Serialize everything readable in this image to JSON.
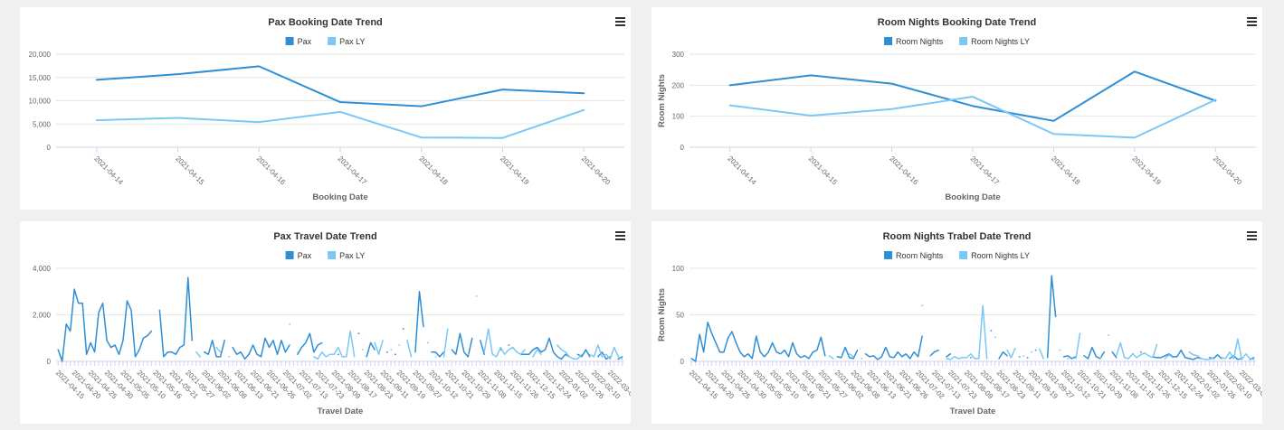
{
  "chart_data": [
    {
      "type": "line",
      "title": "Pax Booking Date Trend",
      "xlabel": "Booking Date",
      "categories": [
        "2021-04-14",
        "2021-04-15",
        "2021-04-16",
        "2021-04-17",
        "2021-04-18",
        "2021-04-19",
        "2021-04-20"
      ],
      "series": [
        {
          "name": "Pax",
          "color": "#2f8fd6",
          "values": [
            14500,
            15700,
            17400,
            9700,
            8800,
            12400,
            11600
          ]
        },
        {
          "name": "Pax LY",
          "color": "#7cc8f5",
          "values": [
            5800,
            6300,
            5400,
            7600,
            2100,
            2000,
            8000
          ]
        }
      ],
      "ylim": [
        0,
        20000
      ],
      "yticks": [
        0,
        {
          "value": 5000,
          "label": "5,000"
        },
        {
          "value": 10000,
          "label": "10,000"
        },
        {
          "value": 15000,
          "label": "15,000"
        },
        {
          "value": 20000,
          "label": "20,000"
        }
      ],
      "grid": true
    },
    {
      "type": "line",
      "title": "Room Nights Booking Date Trend",
      "xlabel": "Booking Date",
      "ylabel": "Room Nights",
      "categories": [
        "2021-04-14",
        "2021-04-15",
        "2021-04-16",
        "2021-04-17",
        "2021-04-18",
        "2021-04-19",
        "2021-04-20"
      ],
      "series": [
        {
          "name": "Room Nights",
          "color": "#2f8fd6",
          "values": [
            200,
            232,
            205,
            133,
            85,
            244,
            150
          ]
        },
        {
          "name": "Room Nights LY",
          "color": "#7cc8f5",
          "values": [
            135,
            102,
            123,
            163,
            43,
            31,
            153
          ]
        }
      ],
      "ylim": [
        0,
        300
      ],
      "yticks": [
        0,
        100,
        200,
        300
      ],
      "grid": true
    },
    {
      "type": "line",
      "title": "Pax Travel Date Trend",
      "xlabel": "Travel Date",
      "categories": [
        "2021-04-15",
        null,
        null,
        null,
        "2021-04-20",
        null,
        null,
        null,
        "2021-04-25",
        null,
        null,
        null,
        "2021-04-30",
        null,
        null,
        null,
        "2021-05-05",
        null,
        null,
        null,
        "2021-05-10",
        null,
        null,
        null,
        "2021-05-16",
        null,
        null,
        null,
        "2021-05-21",
        null,
        null,
        null,
        "2021-05-27",
        null,
        null,
        null,
        "2021-06-02",
        null,
        null,
        null,
        "2021-06-08",
        null,
        null,
        null,
        "2021-06-13",
        null,
        null,
        null,
        "2021-06-21",
        null,
        null,
        null,
        "2021-06-26",
        null,
        null,
        null,
        "2021-07-02",
        null,
        null,
        null,
        "2021-07-13",
        null,
        null,
        null,
        "2021-07-23",
        null,
        null,
        null,
        "2021-08-09",
        null,
        null,
        null,
        "2021-08-17",
        null,
        null,
        null,
        "2021-08-23",
        null,
        null,
        null,
        "2021-09-11",
        null,
        null,
        null,
        "2021-09-19",
        null,
        null,
        null,
        "2021-09-27",
        null,
        null,
        null,
        "2021-10-12",
        null,
        null,
        null,
        "2021-10-21",
        null,
        null,
        null,
        "2021-10-29",
        null,
        null,
        null,
        "2021-11-08",
        null,
        null,
        null,
        "2021-11-15",
        null,
        null,
        null,
        "2021-11-26",
        null,
        null,
        null,
        "2021-12-15",
        null,
        null,
        null,
        "2021-12-24",
        null,
        null,
        null,
        "2022-01-02",
        null,
        null,
        null,
        "2022-01-26",
        null,
        null,
        null,
        "2022-02-10",
        null,
        null,
        null,
        "2022-03-09",
        null,
        null,
        null
      ],
      "series": [
        {
          "name": "Pax",
          "color": "#2f8fd6",
          "values": [
            500,
            0,
            1600,
            1300,
            3100,
            2500,
            2500,
            300,
            800,
            400,
            2100,
            2500,
            900,
            600,
            700,
            300,
            900,
            2600,
            2200,
            200,
            500,
            1000,
            1100,
            1300,
            null,
            2200,
            200,
            400,
            400,
            300,
            600,
            700,
            3600,
            900,
            null,
            null,
            400,
            300,
            900,
            200,
            200,
            900,
            null,
            600,
            300,
            400,
            100,
            300,
            700,
            300,
            200,
            1000,
            600,
            900,
            300,
            900,
            400,
            700,
            null,
            300,
            600,
            800,
            1200,
            400,
            700,
            800,
            null,
            null,
            null,
            300,
            null,
            null,
            null,
            null,
            1200,
            null,
            200,
            800,
            500,
            null,
            null,
            400,
            null,
            300,
            null,
            1400,
            null,
            null,
            400,
            3000,
            1500,
            null,
            400,
            400,
            200,
            400,
            null,
            500,
            300,
            1200,
            400,
            200,
            1000,
            null,
            900,
            300,
            null,
            null,
            null,
            500,
            null,
            700,
            null,
            null,
            300,
            300,
            300,
            500,
            600,
            400,
            500,
            1000,
            400,
            200,
            100,
            300,
            200,
            null,
            300,
            200,
            500,
            200,
            null,
            200,
            400,
            100,
            200,
            null,
            100,
            200
          ]
        },
        {
          "name": "Pax LY",
          "color": "#7cc8f5",
          "values": [
            null,
            null,
            null,
            null,
            null,
            null,
            null,
            null,
            null,
            null,
            null,
            null,
            null,
            null,
            null,
            null,
            null,
            null,
            null,
            null,
            null,
            null,
            null,
            null,
            null,
            null,
            null,
            null,
            null,
            null,
            null,
            null,
            null,
            null,
            400,
            200,
            null,
            null,
            null,
            600,
            400,
            null,
            200,
            null,
            null,
            null,
            null,
            null,
            null,
            null,
            null,
            null,
            null,
            null,
            null,
            null,
            null,
            1600,
            null,
            400,
            null,
            null,
            null,
            200,
            100,
            400,
            200,
            300,
            300,
            600,
            200,
            200,
            1300,
            200,
            null,
            500,
            null,
            null,
            800,
            300,
            900,
            null,
            500,
            null,
            700,
            null,
            900,
            200,
            null,
            null,
            null,
            800,
            null,
            200,
            null,
            200,
            1400,
            null,
            null,
            null,
            null,
            300,
            null,
            2800,
            null,
            400,
            1400,
            300,
            200,
            600,
            300,
            500,
            600,
            400,
            300,
            500,
            null,
            200,
            500,
            300,
            null,
            null,
            null,
            700,
            500,
            400,
            200,
            100,
            100,
            300,
            null,
            300,
            200,
            700,
            200,
            300,
            100,
            600,
            200,
            100
          ]
        }
      ],
      "ylim": [
        0,
        4000
      ],
      "yticks": [
        0,
        {
          "value": 2000,
          "label": "2,000"
        },
        {
          "value": 4000,
          "label": "4,000"
        }
      ],
      "grid": true
    },
    {
      "type": "line",
      "title": "Room Nights Trabel Date Trend",
      "xlabel": "Travel Date",
      "ylabel": "Room Nights",
      "categories": [
        "2021-04-15",
        null,
        null,
        null,
        "2021-04-20",
        null,
        null,
        null,
        "2021-04-25",
        null,
        null,
        null,
        "2021-04-30",
        null,
        null,
        null,
        "2021-05-05",
        null,
        null,
        null,
        "2021-05-10",
        null,
        null,
        null,
        "2021-05-16",
        null,
        null,
        null,
        "2021-05-21",
        null,
        null,
        null,
        "2021-05-27",
        null,
        null,
        null,
        "2021-06-02",
        null,
        null,
        null,
        "2021-06-08",
        null,
        null,
        null,
        "2021-06-13",
        null,
        null,
        null,
        "2021-06-21",
        null,
        null,
        null,
        "2021-06-26",
        null,
        null,
        null,
        "2021-07-02",
        null,
        null,
        null,
        "2021-07-13",
        null,
        null,
        null,
        "2021-07-23",
        null,
        null,
        null,
        "2021-08-09",
        null,
        null,
        null,
        "2021-08-17",
        null,
        null,
        null,
        "2021-08-23",
        null,
        null,
        null,
        "2021-09-11",
        null,
        null,
        null,
        "2021-09-19",
        null,
        null,
        null,
        "2021-09-27",
        null,
        null,
        null,
        "2021-10-12",
        null,
        null,
        null,
        "2021-10-21",
        null,
        null,
        null,
        "2021-10-29",
        null,
        null,
        null,
        "2021-11-08",
        null,
        null,
        null,
        "2021-11-15",
        null,
        null,
        null,
        "2021-11-26",
        null,
        null,
        null,
        "2021-12-15",
        null,
        null,
        null,
        "2021-12-24",
        null,
        null,
        null,
        "2022-01-02",
        null,
        null,
        null,
        "2022-01-26",
        null,
        null,
        null,
        "2022-02-10",
        null,
        null,
        null,
        "2022-03-09",
        null,
        null,
        null
      ],
      "series": [
        {
          "name": "Room Nights",
          "color": "#2f8fd6",
          "values": [
            3,
            0,
            29,
            10,
            42,
            30,
            20,
            10,
            10,
            25,
            32,
            20,
            10,
            5,
            8,
            3,
            27,
            10,
            5,
            10,
            20,
            10,
            8,
            12,
            5,
            20,
            8,
            4,
            6,
            3,
            10,
            12,
            26,
            6,
            null,
            null,
            5,
            4,
            15,
            4,
            3,
            12,
            null,
            8,
            5,
            6,
            2,
            5,
            15,
            5,
            4,
            10,
            5,
            8,
            3,
            10,
            5,
            27,
            null,
            6,
            10,
            12,
            null,
            5,
            8,
            null,
            null,
            null,
            null,
            4,
            null,
            null,
            null,
            null,
            33,
            null,
            3,
            10,
            6,
            null,
            null,
            5,
            null,
            4,
            null,
            12,
            null,
            null,
            4,
            92,
            48,
            null,
            5,
            6,
            3,
            5,
            null,
            6,
            3,
            15,
            5,
            3,
            10,
            null,
            10,
            4,
            null,
            null,
            null,
            8,
            null,
            10,
            null,
            null,
            5,
            4,
            4,
            6,
            8,
            5,
            5,
            12,
            4,
            3,
            2,
            4,
            3,
            null,
            4,
            3,
            7,
            3,
            null,
            3,
            6,
            2,
            3,
            null,
            2,
            4
          ]
        },
        {
          "name": "Room Nights LY",
          "color": "#7cc8f5",
          "values": [
            null,
            null,
            null,
            null,
            null,
            null,
            null,
            null,
            null,
            null,
            null,
            null,
            null,
            null,
            null,
            null,
            null,
            null,
            null,
            null,
            null,
            null,
            null,
            null,
            null,
            null,
            null,
            null,
            null,
            null,
            null,
            null,
            null,
            null,
            6,
            3,
            null,
            null,
            null,
            8,
            5,
            null,
            3,
            null,
            null,
            null,
            null,
            null,
            null,
            null,
            null,
            null,
            null,
            null,
            null,
            null,
            null,
            60,
            null,
            6,
            null,
            null,
            null,
            3,
            2,
            5,
            3,
            4,
            4,
            8,
            3,
            3,
            60,
            3,
            null,
            26,
            null,
            null,
            12,
            4,
            14,
            null,
            6,
            null,
            10,
            null,
            13,
            3,
            null,
            null,
            null,
            12,
            null,
            3,
            null,
            3,
            30,
            null,
            null,
            null,
            null,
            4,
            null,
            28,
            null,
            6,
            20,
            4,
            3,
            8,
            4,
            7,
            9,
            6,
            4,
            18,
            null,
            3,
            7,
            4,
            null,
            null,
            null,
            10,
            7,
            6,
            3,
            2,
            2,
            4,
            null,
            4,
            3,
            10,
            3,
            24,
            2,
            8,
            3,
            2
          ]
        }
      ],
      "ylim": [
        0,
        100
      ],
      "yticks": [
        0,
        50,
        100
      ],
      "grid": true
    }
  ]
}
